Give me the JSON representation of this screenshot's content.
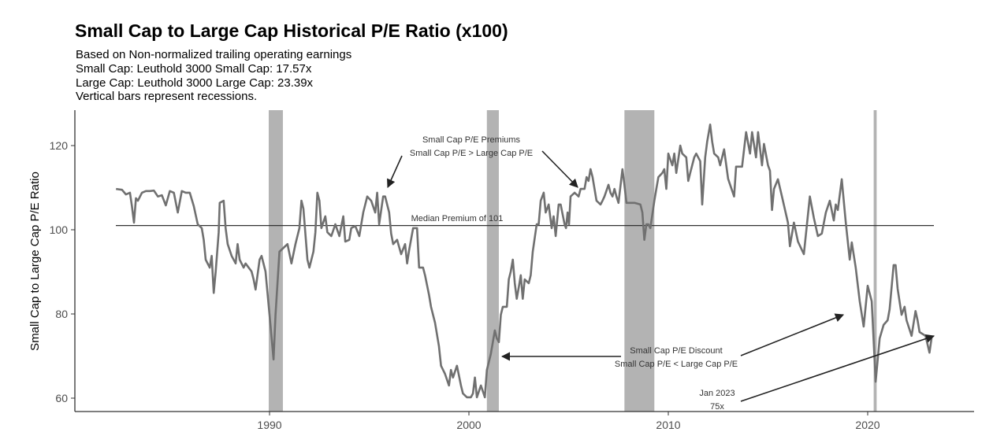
{
  "title": "Small Cap to Large Cap Historical P/E Ratio (x100)",
  "subtitles": [
    "Based on Non-normalized trailing operating earnings",
    "Small Cap: Leuthold 3000 Small Cap: 17.57x",
    "Large Cap: Leuthold 3000 Large Cap: 23.39x",
    "Vertical bars represent recessions."
  ],
  "chart_data": {
    "type": "line",
    "title": "Small Cap to Large Cap Historical P/E Ratio (x100)",
    "xlabel": "",
    "ylabel": "Small Cap to Large Cap P/E Ratio",
    "xlim": [
      1982,
      2027.5
    ],
    "ylim": [
      57.5,
      128
    ],
    "x_ticks": [
      1990,
      2000,
      2010,
      2020
    ],
    "y_ticks": [
      60,
      80,
      100,
      120
    ],
    "grid": false,
    "line_color": "#707070",
    "recession_color": "#b3b3b3",
    "median": {
      "value": 101,
      "label": "Median Premium of 101"
    },
    "recessions": [
      [
        1989.96,
        1990.67
      ],
      [
        2000.9,
        2001.5
      ],
      [
        2007.8,
        2009.3
      ],
      [
        2020.3,
        2020.45
      ]
    ],
    "annotations": {
      "premium": [
        "Small Cap P/E Premiums",
        "Small Cap P/E > Large Cap P/E"
      ],
      "discount": [
        "Small Cap P/E Discount",
        "Small Cap P/E < Large Cap P/E"
      ],
      "latest": [
        "Jan 2023",
        "75x"
      ]
    },
    "series": [
      {
        "points": [
          [
            1982.3,
            109.7
          ],
          [
            1982.6,
            109.5
          ],
          [
            1982.8,
            108.4
          ],
          [
            1983.0,
            108.8
          ],
          [
            1983.1,
            105.6
          ],
          [
            1983.2,
            101.7
          ],
          [
            1983.3,
            107.5
          ],
          [
            1983.4,
            106.9
          ],
          [
            1983.6,
            108.8
          ],
          [
            1983.8,
            109.2
          ],
          [
            1984.0,
            109.2
          ],
          [
            1984.2,
            109.3
          ],
          [
            1984.4,
            107.9
          ],
          [
            1984.6,
            108.2
          ],
          [
            1984.8,
            105.8
          ],
          [
            1985.0,
            109.2
          ],
          [
            1985.2,
            108.8
          ],
          [
            1985.4,
            104.1
          ],
          [
            1985.6,
            109.2
          ],
          [
            1985.8,
            108.8
          ],
          [
            1986.0,
            108.8
          ],
          [
            1986.2,
            105.6
          ],
          [
            1986.4,
            101.3
          ],
          [
            1986.6,
            100.4
          ],
          [
            1986.7,
            97.6
          ],
          [
            1986.8,
            92.9
          ],
          [
            1987.0,
            91.0
          ],
          [
            1987.1,
            93.8
          ],
          [
            1987.2,
            85.0
          ],
          [
            1987.3,
            90.1
          ],
          [
            1987.45,
            99.4
          ],
          [
            1987.5,
            106.4
          ],
          [
            1987.7,
            106.9
          ],
          [
            1987.8,
            100.4
          ],
          [
            1987.9,
            96.6
          ],
          [
            1988.1,
            93.8
          ],
          [
            1988.3,
            92.0
          ],
          [
            1988.4,
            96.6
          ],
          [
            1988.5,
            92.9
          ],
          [
            1988.7,
            91.0
          ],
          [
            1988.8,
            92.0
          ],
          [
            1989.1,
            90.1
          ],
          [
            1989.2,
            88.2
          ],
          [
            1989.3,
            85.8
          ],
          [
            1989.5,
            92.9
          ],
          [
            1989.6,
            93.8
          ],
          [
            1989.8,
            90.1
          ],
          [
            1990.0,
            79.8
          ],
          [
            1990.2,
            69.2
          ],
          [
            1990.3,
            79.8
          ],
          [
            1990.5,
            94.8
          ],
          [
            1990.7,
            95.7
          ],
          [
            1990.9,
            96.6
          ],
          [
            1991.1,
            92.0
          ],
          [
            1991.3,
            96.6
          ],
          [
            1991.5,
            100.4
          ],
          [
            1991.6,
            106.9
          ],
          [
            1991.7,
            105.0
          ],
          [
            1991.9,
            92.9
          ],
          [
            1992.0,
            91.0
          ],
          [
            1992.2,
            94.8
          ],
          [
            1992.3,
            99.4
          ],
          [
            1992.4,
            108.8
          ],
          [
            1992.5,
            106.9
          ],
          [
            1992.6,
            100.4
          ],
          [
            1992.8,
            103.2
          ],
          [
            1992.9,
            99.4
          ],
          [
            1993.1,
            98.5
          ],
          [
            1993.3,
            101.3
          ],
          [
            1993.5,
            98.5
          ],
          [
            1993.7,
            103.2
          ],
          [
            1993.8,
            97.2
          ],
          [
            1994.0,
            97.6
          ],
          [
            1994.1,
            100.4
          ],
          [
            1994.3,
            100.9
          ],
          [
            1994.5,
            98.5
          ],
          [
            1994.7,
            104.1
          ],
          [
            1994.9,
            107.9
          ],
          [
            1995.1,
            106.9
          ],
          [
            1995.3,
            104.1
          ],
          [
            1995.4,
            108.8
          ],
          [
            1995.5,
            101.3
          ],
          [
            1995.7,
            107.9
          ],
          [
            1995.8,
            107.9
          ],
          [
            1996.0,
            104.1
          ],
          [
            1996.1,
            99.1
          ],
          [
            1996.2,
            96.6
          ],
          [
            1996.4,
            97.6
          ],
          [
            1996.6,
            94.2
          ],
          [
            1996.8,
            96.6
          ],
          [
            1996.9,
            92.0
          ],
          [
            1997.0,
            95.1
          ],
          [
            1997.2,
            100.4
          ],
          [
            1997.4,
            100.4
          ],
          [
            1997.5,
            91.0
          ],
          [
            1997.7,
            91.0
          ],
          [
            1997.8,
            89.2
          ],
          [
            1998.0,
            84.5
          ],
          [
            1998.1,
            81.7
          ],
          [
            1998.3,
            77.9
          ],
          [
            1998.5,
            72.3
          ],
          [
            1998.6,
            67.7
          ],
          [
            1998.8,
            65.8
          ],
          [
            1999.0,
            63.0
          ],
          [
            1999.1,
            66.7
          ],
          [
            1999.2,
            64.9
          ],
          [
            1999.4,
            67.7
          ],
          [
            1999.6,
            63.0
          ],
          [
            1999.7,
            61.1
          ],
          [
            1999.9,
            60.2
          ],
          [
            2000.1,
            60.2
          ],
          [
            2000.2,
            61.1
          ],
          [
            2000.3,
            64.9
          ],
          [
            2000.4,
            60.2
          ],
          [
            2000.6,
            63.0
          ],
          [
            2000.8,
            60.2
          ],
          [
            2000.9,
            66.7
          ],
          [
            2001.1,
            70.5
          ],
          [
            2001.3,
            76.1
          ],
          [
            2001.4,
            74.2
          ],
          [
            2001.5,
            73.3
          ],
          [
            2001.6,
            79.8
          ],
          [
            2001.7,
            81.7
          ],
          [
            2001.9,
            81.7
          ],
          [
            2002.0,
            88.2
          ],
          [
            2002.1,
            90.1
          ],
          [
            2002.2,
            92.9
          ],
          [
            2002.3,
            87.3
          ],
          [
            2002.4,
            83.6
          ],
          [
            2002.5,
            86.4
          ],
          [
            2002.6,
            89.2
          ],
          [
            2002.7,
            83.6
          ],
          [
            2002.8,
            88.2
          ],
          [
            2003.0,
            87.3
          ],
          [
            2003.1,
            89.2
          ],
          [
            2003.2,
            94.8
          ],
          [
            2003.4,
            101.3
          ],
          [
            2003.5,
            101.3
          ],
          [
            2003.6,
            106.9
          ],
          [
            2003.75,
            108.8
          ],
          [
            2003.85,
            104.1
          ],
          [
            2004.0,
            106.0
          ],
          [
            2004.15,
            100.4
          ],
          [
            2004.25,
            103.2
          ],
          [
            2004.35,
            98.5
          ],
          [
            2004.5,
            106.0
          ],
          [
            2004.6,
            106.0
          ],
          [
            2004.8,
            101.3
          ],
          [
            2004.87,
            100.4
          ],
          [
            2004.95,
            104.1
          ],
          [
            2005.02,
            101.3
          ],
          [
            2005.1,
            107.9
          ],
          [
            2005.3,
            108.8
          ],
          [
            2005.5,
            107.9
          ],
          [
            2005.6,
            109.7
          ],
          [
            2005.8,
            109.7
          ],
          [
            2005.9,
            112.5
          ],
          [
            2006.0,
            111.6
          ],
          [
            2006.1,
            114.4
          ],
          [
            2006.2,
            112.5
          ],
          [
            2006.4,
            106.9
          ],
          [
            2006.6,
            106.0
          ],
          [
            2006.7,
            106.9
          ],
          [
            2006.8,
            107.9
          ],
          [
            2007.0,
            110.7
          ],
          [
            2007.1,
            108.8
          ],
          [
            2007.2,
            107.9
          ],
          [
            2007.3,
            109.7
          ],
          [
            2007.4,
            107.9
          ],
          [
            2007.5,
            106.4
          ],
          [
            2007.7,
            114.4
          ],
          [
            2007.8,
            110.7
          ],
          [
            2007.9,
            106.4
          ],
          [
            2008.3,
            106.4
          ],
          [
            2008.6,
            106.0
          ],
          [
            2008.7,
            104.1
          ],
          [
            2008.8,
            97.6
          ],
          [
            2008.9,
            101.3
          ],
          [
            2009.0,
            101.3
          ],
          [
            2009.1,
            100.4
          ],
          [
            2009.3,
            106.9
          ],
          [
            2009.4,
            109.7
          ],
          [
            2009.5,
            112.5
          ],
          [
            2009.7,
            113.5
          ],
          [
            2009.8,
            114.4
          ],
          [
            2009.9,
            109.7
          ],
          [
            2010.0,
            118.1
          ],
          [
            2010.2,
            115.3
          ],
          [
            2010.3,
            118.1
          ],
          [
            2010.4,
            113.5
          ],
          [
            2010.6,
            120.0
          ],
          [
            2010.7,
            118.1
          ],
          [
            2010.9,
            117.2
          ],
          [
            2011.0,
            111.6
          ],
          [
            2011.1,
            113.5
          ],
          [
            2011.3,
            117.2
          ],
          [
            2011.4,
            118.1
          ],
          [
            2011.6,
            116.3
          ],
          [
            2011.7,
            106.0
          ],
          [
            2011.85,
            117.2
          ],
          [
            2011.95,
            120.9
          ],
          [
            2012.1,
            125.0
          ],
          [
            2012.2,
            120.9
          ],
          [
            2012.3,
            118.1
          ],
          [
            2012.5,
            117.2
          ],
          [
            2012.6,
            115.3
          ],
          [
            2012.8,
            119.1
          ],
          [
            2013.0,
            112.1
          ],
          [
            2013.3,
            107.9
          ],
          [
            2013.4,
            115.0
          ],
          [
            2013.7,
            115.0
          ],
          [
            2013.9,
            123.2
          ],
          [
            2014.1,
            118.1
          ],
          [
            2014.2,
            123.2
          ],
          [
            2014.4,
            117.2
          ],
          [
            2014.5,
            123.2
          ],
          [
            2014.7,
            115.3
          ],
          [
            2014.8,
            120.4
          ],
          [
            2015.0,
            115.3
          ],
          [
            2015.1,
            114.0
          ],
          [
            2015.2,
            104.7
          ],
          [
            2015.3,
            109.7
          ],
          [
            2015.5,
            112.0
          ],
          [
            2015.7,
            107.9
          ],
          [
            2016.0,
            101.7
          ],
          [
            2016.1,
            96.1
          ],
          [
            2016.3,
            101.7
          ],
          [
            2016.5,
            97.2
          ],
          [
            2016.8,
            94.2
          ],
          [
            2017.1,
            107.9
          ],
          [
            2017.3,
            102.8
          ],
          [
            2017.5,
            98.5
          ],
          [
            2017.7,
            99.1
          ],
          [
            2017.9,
            104.1
          ],
          [
            2018.1,
            106.9
          ],
          [
            2018.3,
            102.2
          ],
          [
            2018.4,
            106.0
          ],
          [
            2018.5,
            104.7
          ],
          [
            2018.7,
            112.0
          ],
          [
            2018.9,
            101.7
          ],
          [
            2019.1,
            92.9
          ],
          [
            2019.2,
            97.0
          ],
          [
            2019.4,
            91.0
          ],
          [
            2019.6,
            83.0
          ],
          [
            2019.8,
            77.0
          ],
          [
            2020.0,
            86.7
          ],
          [
            2020.2,
            83.0
          ],
          [
            2020.4,
            63.9
          ],
          [
            2020.6,
            74.2
          ],
          [
            2020.8,
            77.4
          ],
          [
            2021.0,
            78.5
          ],
          [
            2021.1,
            81.1
          ],
          [
            2021.3,
            91.6
          ],
          [
            2021.4,
            91.6
          ],
          [
            2021.5,
            86.0
          ],
          [
            2021.7,
            79.8
          ],
          [
            2021.85,
            81.7
          ],
          [
            2021.95,
            78.5
          ],
          [
            2022.2,
            74.8
          ],
          [
            2022.4,
            80.7
          ],
          [
            2022.5,
            78.5
          ],
          [
            2022.6,
            75.7
          ],
          [
            2022.9,
            74.8
          ],
          [
            2023.1,
            70.8
          ],
          [
            2023.2,
            74.2
          ]
        ]
      }
    ]
  }
}
